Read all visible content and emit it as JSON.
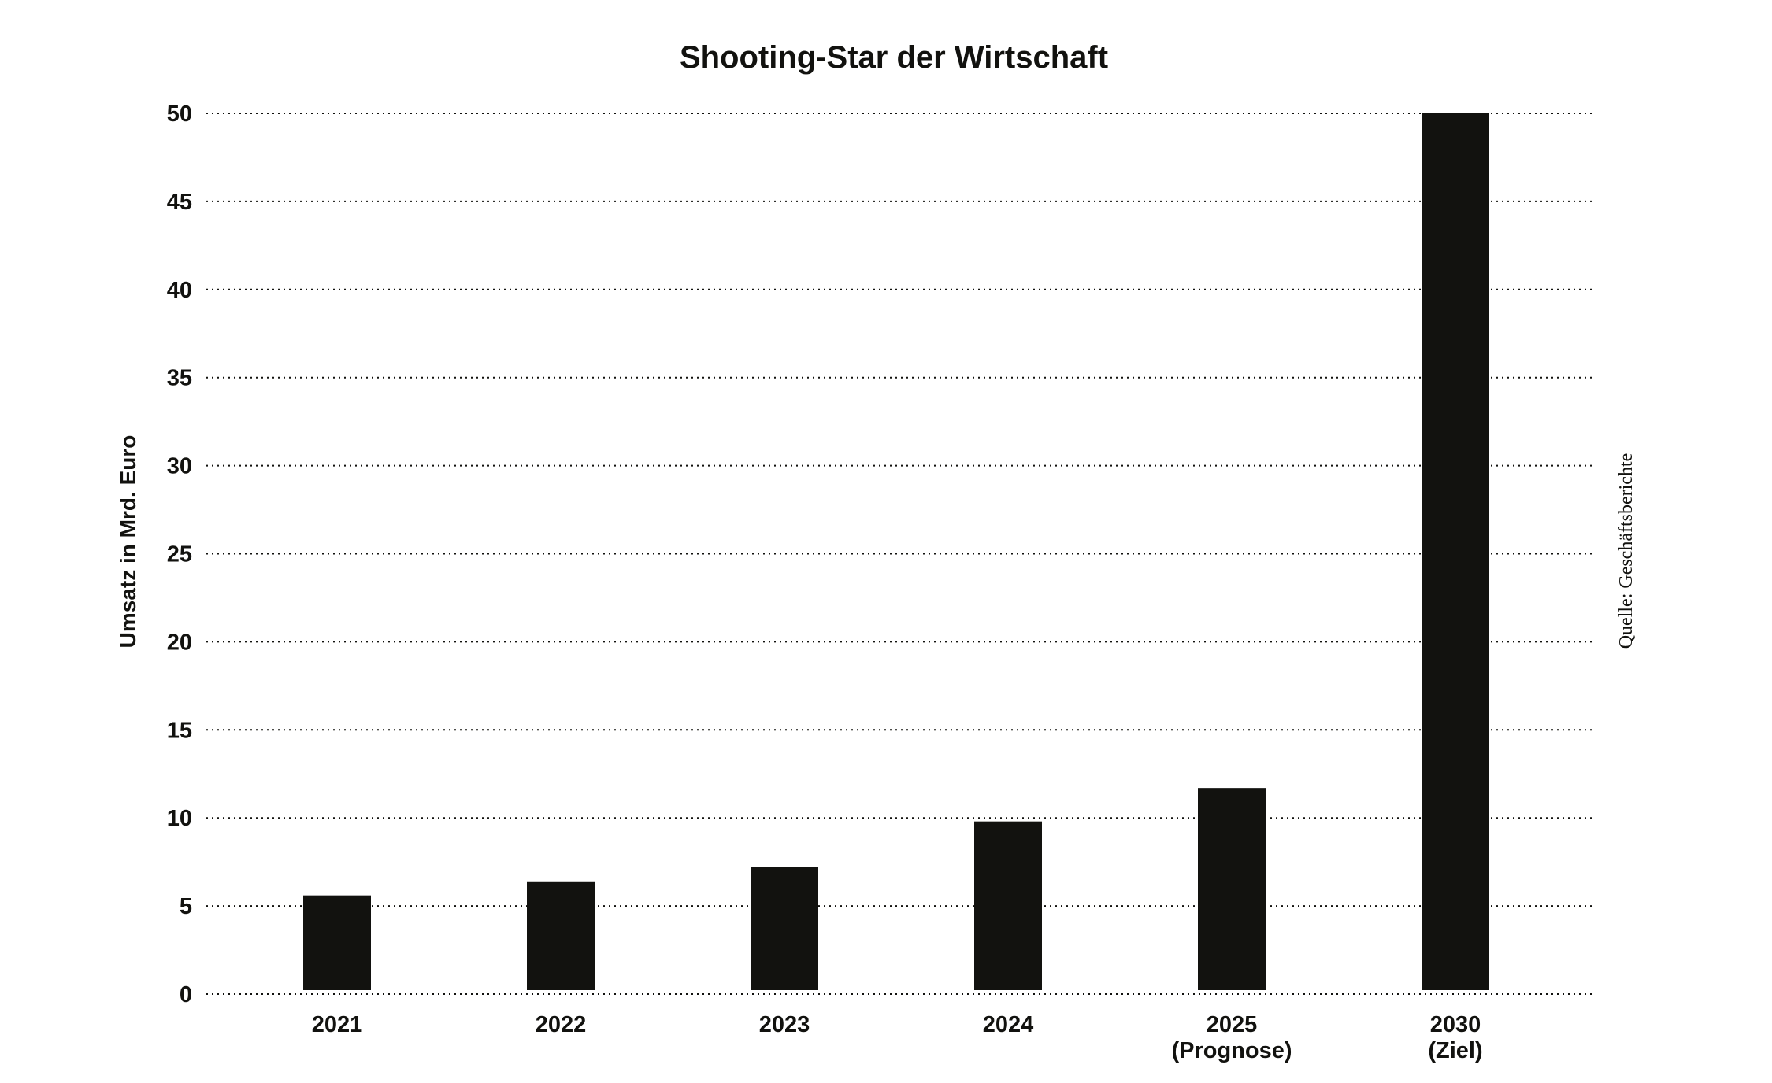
{
  "chart_data": {
    "type": "bar",
    "title": "Shooting-Star der Wirtschaft",
    "xlabel": "",
    "ylabel": "Umsatz in Mrd. Euro",
    "source": "Quelle: Geschäftsberichte",
    "categories": [
      [
        "2021"
      ],
      [
        "2022"
      ],
      [
        "2023"
      ],
      [
        "2024"
      ],
      [
        "2025",
        "(Prognose)"
      ],
      [
        "2030",
        "(Ziel)"
      ]
    ],
    "values": [
      5.6,
      6.4,
      7.2,
      9.8,
      11.7,
      50
    ],
    "ylim": [
      0,
      50
    ],
    "yticks": [
      0,
      5,
      10,
      15,
      20,
      25,
      30,
      35,
      40,
      45,
      50
    ],
    "grid": true,
    "legend": "none",
    "colors": {
      "bar": "#12120f",
      "grid": "#12120f",
      "text": "#12120f",
      "background": "#ffffff"
    }
  }
}
